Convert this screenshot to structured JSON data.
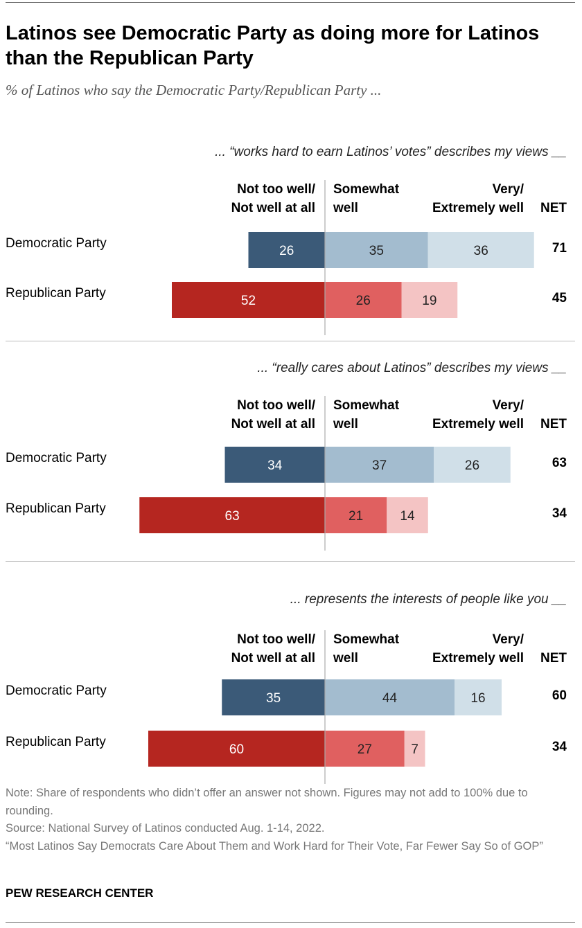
{
  "title": "Latinos see Democratic Party as doing more for Latinos than the Republican Party",
  "subtitle": "% of Latinos who say the Democratic Party/Republican Party ...",
  "chart_data": {
    "type": "bar",
    "orientation": "horizontal-diverging",
    "categories": [
      "Democratic Party",
      "Republican Party"
    ],
    "column_headers": {
      "negative": "Not too well/\nNot well at all",
      "somewhat": "Somewhat\nwell",
      "very": "Very/\nExtremely well",
      "net": "NET"
    },
    "colors": {
      "dem": [
        "#3b5a78",
        "#a3bccf",
        "#d0dfe8"
      ],
      "rep": [
        "#b52620",
        "#e06060",
        "#f4c4c4"
      ]
    },
    "panels": [
      {
        "title": "... “works hard to earn Latinos’ votes” describes my views __",
        "rows": [
          {
            "label": "Democratic Party",
            "not_well": 26,
            "somewhat": 35,
            "very": 36,
            "net": 71
          },
          {
            "label": "Republican Party",
            "not_well": 52,
            "somewhat": 26,
            "very": 19,
            "net": 45
          }
        ]
      },
      {
        "title": "... “really cares about Latinos” describes my views __",
        "rows": [
          {
            "label": "Democratic Party",
            "not_well": 34,
            "somewhat": 37,
            "very": 26,
            "net": 63
          },
          {
            "label": "Republican Party",
            "not_well": 63,
            "somewhat": 21,
            "very": 14,
            "net": 34
          }
        ]
      },
      {
        "title": "... represents the interests of people like you __",
        "rows": [
          {
            "label": "Democratic Party",
            "not_well": 35,
            "somewhat": 44,
            "very": 16,
            "net": 60
          },
          {
            "label": "Republican Party",
            "not_well": 60,
            "somewhat": 27,
            "very": 7,
            "net": 34
          }
        ]
      }
    ]
  },
  "footer": {
    "note": "Note: Share of respondents who didn’t offer an answer not shown. Figures may not add to 100% due to rounding.",
    "source": "Source: National Survey of Latinos conducted Aug. 1-14, 2022.",
    "report": "“Most Latinos Say Democrats Care About Them and Work Hard for Their Vote, Far Fewer Say So of GOP”",
    "brand": "PEW RESEARCH CENTER"
  }
}
